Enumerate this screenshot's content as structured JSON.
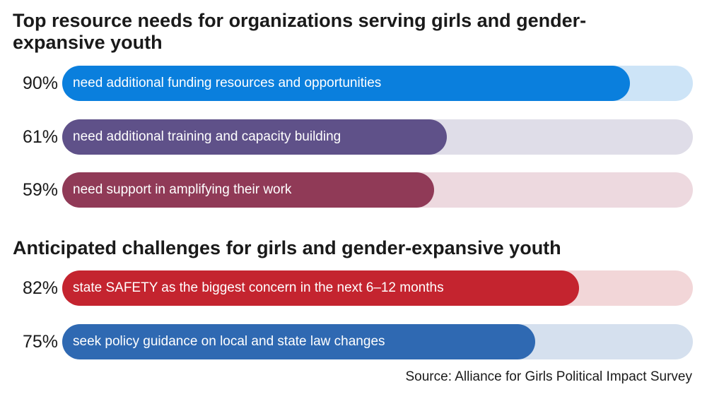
{
  "chart_data": [
    {
      "type": "bar",
      "orientation": "horizontal",
      "title": "Top resource needs for organizations serving girls and gender-expansive youth",
      "ylim": [
        0,
        100
      ],
      "bars": [
        {
          "value": 90,
          "display": "90%",
          "label": "need additional funding resources and opportunities",
          "color": "#0A7FDD",
          "track": "#CDE4F7"
        },
        {
          "value": 61,
          "display": "61%",
          "label": "need additional training and capacity building",
          "color": "#5F5189",
          "track": "#DFDDE8"
        },
        {
          "value": 59,
          "display": "59%",
          "label": "need support in amplifying their work",
          "color": "#903A57",
          "track": "#EDD9DF"
        }
      ]
    },
    {
      "type": "bar",
      "orientation": "horizontal",
      "title": "Anticipated challenges for girls and gender-expansive youth",
      "ylim": [
        0,
        100
      ],
      "bars": [
        {
          "value": 82,
          "display": "82%",
          "label": "state SAFETY as the biggest concern in the next 6–12 months",
          "color": "#C4242F",
          "track": "#F2D6D8"
        },
        {
          "value": 75,
          "display": "75%",
          "label": "seek policy guidance on local and state law changes",
          "color": "#2F69B2",
          "track": "#D5E0EE"
        }
      ]
    }
  ],
  "source": "Source: Alliance for Girls Political Impact Survey"
}
